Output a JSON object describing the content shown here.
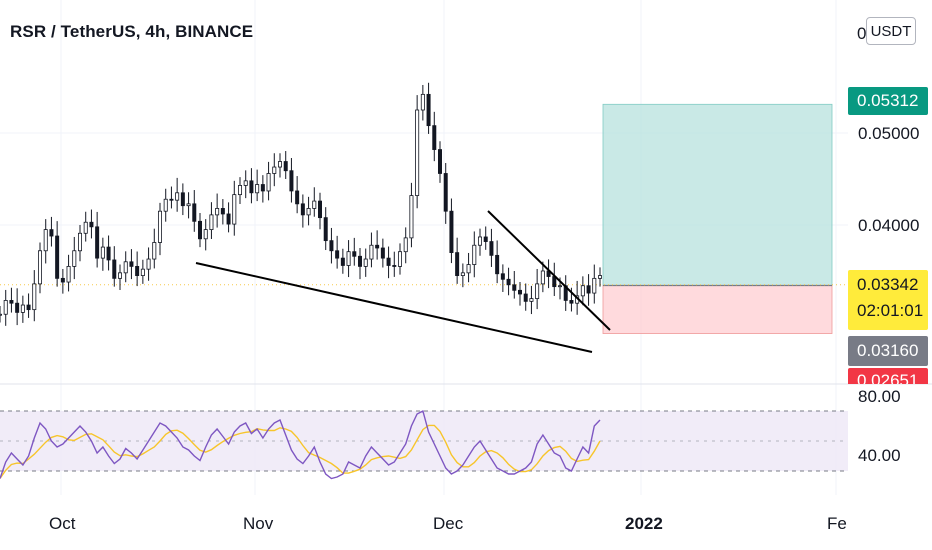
{
  "header": {
    "title": "RSR / TetherUS, 4h, BINANCE",
    "currency_button": "USDT",
    "axis_top_stub": "0"
  },
  "chart_data": {
    "type": "candlestick",
    "title": "RSR / TetherUS, 4h, BINANCE",
    "y_axis": {
      "ticks": [
        "0.05000",
        "0.04000"
      ],
      "tick_values": [
        0.05,
        0.04
      ],
      "position": "right"
    },
    "x_axis": {
      "ticks": [
        "Oct",
        "Nov",
        "Dec",
        "2022",
        "Fe"
      ]
    },
    "price_tags": [
      {
        "label": "0.05312",
        "value": 0.05312,
        "color": "#089981",
        "role": "take profit"
      },
      {
        "label": "0.03342",
        "value": 0.03342,
        "color": "#ffeb3b",
        "role": "last price",
        "countdown": "02:01:01"
      },
      {
        "label": "0.03160",
        "value": 0.0316,
        "color": "#787b86",
        "role": "entry"
      },
      {
        "label": "0.02651",
        "value": 0.02651,
        "color": "#f23645",
        "role": "stop loss"
      }
    ],
    "price_series": [
      0.0303,
      0.0318,
      0.0315,
      0.0305,
      0.0313,
      0.0308,
      0.0336,
      0.0372,
      0.0395,
      0.0388,
      0.0342,
      0.0338,
      0.0355,
      0.0372,
      0.0391,
      0.0403,
      0.0398,
      0.0364,
      0.0376,
      0.0362,
      0.0342,
      0.0348,
      0.036,
      0.0355,
      0.0345,
      0.0352,
      0.0363,
      0.0381,
      0.0415,
      0.0428,
      0.0427,
      0.0435,
      0.0421,
      0.0423,
      0.0404,
      0.0385,
      0.0395,
      0.0411,
      0.0418,
      0.0412,
      0.0401,
      0.0433,
      0.0443,
      0.0448,
      0.0435,
      0.0444,
      0.0437,
      0.0456,
      0.0463,
      0.0469,
      0.0459,
      0.0437,
      0.0423,
      0.0411,
      0.0418,
      0.0426,
      0.0408,
      0.0383,
      0.0372,
      0.0364,
      0.0356,
      0.0371,
      0.0366,
      0.0355,
      0.0363,
      0.0378,
      0.0375,
      0.0364,
      0.0356,
      0.0355,
      0.0371,
      0.0386,
      0.0432,
      0.0525,
      0.0542,
      0.0508,
      0.0482,
      0.0456,
      0.0415,
      0.037,
      0.0345,
      0.0348,
      0.0357,
      0.0378,
      0.0387,
      0.0382,
      0.0367,
      0.0347,
      0.0341,
      0.0335,
      0.0329,
      0.0325,
      0.0317,
      0.032,
      0.0336,
      0.035,
      0.0344,
      0.0333,
      0.0334,
      0.0318,
      0.0315,
      0.0323,
      0.0334,
      0.0326,
      0.0342,
      0.0345
    ],
    "rsi": {
      "upper_band": "80.00",
      "lower_band": "40.00",
      "upper_value": 80,
      "lower_value": 40,
      "values": [
        35,
        46,
        52,
        48,
        44,
        50,
        62,
        72,
        68,
        60,
        56,
        58,
        62,
        66,
        70,
        66,
        60,
        52,
        56,
        50,
        45,
        48,
        55,
        52,
        48,
        54,
        60,
        66,
        72,
        70,
        66,
        62,
        56,
        54,
        50,
        47,
        56,
        64,
        68,
        63,
        58,
        66,
        70,
        72,
        65,
        68,
        62,
        68,
        72,
        74,
        64,
        54,
        48,
        45,
        50,
        56,
        46,
        38,
        35,
        36,
        38,
        46,
        44,
        42,
        50,
        56,
        52,
        48,
        44,
        46,
        52,
        58,
        70,
        78,
        80,
        66,
        58,
        50,
        42,
        38,
        40,
        44,
        50,
        56,
        60,
        54,
        48,
        42,
        40,
        38,
        38,
        40,
        42,
        46,
        58,
        64,
        58,
        52,
        50,
        42,
        40,
        48,
        56,
        52,
        70,
        74
      ]
    },
    "annotations": [
      "descending support trendline",
      "descending resistance trendline",
      "long position box (profit / loss zones)",
      "last price dotted line"
    ]
  }
}
